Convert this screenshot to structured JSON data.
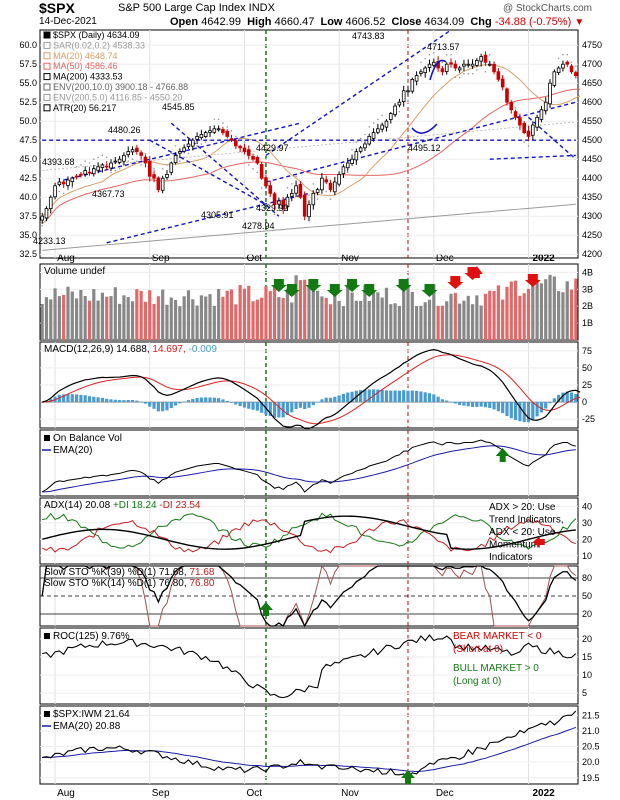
{
  "header": {
    "symbol": "$SPX",
    "name": "S&P 500 Large Cap Index  INDX",
    "date": "14-Dec-2021",
    "watermark": "@ StockCharts.com",
    "open_label": "Open",
    "open": "4642.99",
    "high_label": "High",
    "high": "4660.47",
    "low_label": "Low",
    "low": "4606.52",
    "close_label": "Close",
    "close": "4634.09",
    "chg_label": "Chg",
    "chg": "-34.88 (-0.75%)",
    "chg_icon": "down-triangle-icon"
  },
  "colors": {
    "up": "#000000",
    "down": "#cc0000",
    "ma20": "#d9a06a",
    "ma50": "#e66464",
    "ma200": "#9a9a9a",
    "sar": "#9a9a9a",
    "trend": "#1414c8",
    "green_marker": "#137a13",
    "red_marker": "#e01010",
    "vline_green": "#137a13",
    "vline_red": "#cc0000",
    "macd_hist": "#4a9bd0",
    "ema_blue": "#1a1aa8"
  },
  "chart_data": [
    {
      "id": "price",
      "type": "candlestick",
      "legend": [
        "$SPX (Daily) 4634.09",
        "SAR(0.02,0.2) 4538.33",
        "MA(20) 4648.74",
        "MA(50) 4586.46",
        "MA(200) 4333.53",
        "ENV(200,10.0) 3900.18 - 4766.88",
        "ENV(200,5.0) 4116.85 - 4550.20",
        "ATR(20) 56.217"
      ],
      "y_right_ticks": [
        "4750",
        "4700",
        "4650",
        "4600",
        "4550",
        "4500",
        "4450",
        "4400",
        "4350",
        "4300",
        "4250",
        "4200"
      ],
      "y_left_ticks": [
        "60.0",
        "57.5",
        "55.0",
        "52.5",
        "50.0",
        "47.5",
        "45.0",
        "42.5",
        "40.0",
        "37.5",
        "35.0",
        "32.5"
      ],
      "ylim": [
        4190,
        4790
      ],
      "annotations": [
        "4393.68",
        "4480.26",
        "4545.85",
        "4367.73",
        "4305.91",
        "4278.94",
        "4429.97",
        "4329.92",
        "4743.83",
        "4713.57",
        "4495.12",
        "4233.13"
      ],
      "closes": [
        4300,
        4320,
        4350,
        4380,
        4390,
        4385,
        4395,
        4400,
        4405,
        4410,
        4420,
        4415,
        4425,
        4430,
        4435,
        4430,
        4440,
        4445,
        4450,
        4460,
        4470,
        4475,
        4470,
        4460,
        4440,
        4405,
        4400,
        4370,
        4400,
        4410,
        4440,
        4460,
        4470,
        4480,
        4490,
        4500,
        4510,
        4515,
        4520,
        4525,
        4530,
        4530,
        4520,
        4510,
        4500,
        4485,
        4480,
        4470,
        4460,
        4450,
        4440,
        4400,
        4380,
        4360,
        4330,
        4340,
        4320,
        4350,
        4360,
        4380,
        4350,
        4300,
        4330,
        4360,
        4370,
        4400,
        4390,
        4370,
        4390,
        4410,
        4430,
        4440,
        4450,
        4470,
        4480,
        4490,
        4510,
        4520,
        4530,
        4540,
        4550,
        4570,
        4590,
        4600,
        4630,
        4630,
        4660,
        4670,
        4680,
        4690,
        4700,
        4705,
        4690,
        4680,
        4700,
        4700,
        4690,
        4690,
        4700,
        4700,
        4700,
        4710,
        4720,
        4705,
        4700,
        4680,
        4660,
        4640,
        4600,
        4580,
        4560,
        4540,
        4520,
        4510,
        4540,
        4560,
        4580,
        4600,
        4650,
        4680,
        4690,
        4700,
        4700,
        4680,
        4670,
        4634
      ]
    },
    {
      "id": "volume",
      "type": "bar",
      "legend": [
        "Volume undef"
      ],
      "y_ticks": [
        "4B",
        "3B",
        "2B",
        "1B"
      ],
      "ylim": [
        0,
        4.5
      ]
    },
    {
      "id": "macd",
      "type": "line",
      "legend_prefix": "MACD(12,26,9) ",
      "legend_macd": "14.688,",
      "legend_signal": "14.697,",
      "legend_hist": "-0.009",
      "y_ticks": [
        "75",
        "50",
        "25",
        "0",
        "-25"
      ],
      "ylim": [
        -38,
        88
      ]
    },
    {
      "id": "obv",
      "type": "line",
      "legend": [
        "On Balance Vol",
        "EMA(20)"
      ]
    },
    {
      "id": "adx",
      "type": "line",
      "legend_adx": "ADX(14) 20.08",
      "legend_pdi": "+DI 18.24",
      "legend_mdi": "-DI 23.54",
      "y_ticks": [
        "40",
        "30",
        "20",
        "10"
      ],
      "ylim": [
        5,
        45
      ],
      "note": [
        "ADX > 20: Use",
        "Trend Indicators,",
        "ADX < 20: Use",
        "Momentum",
        "Indicators"
      ]
    },
    {
      "id": "stoch",
      "type": "line",
      "legend_slow": "Slow STO %K(39) %D(1) 71.68, ",
      "legend_slow_red": "71.68",
      "legend_fast": "Slow STO %K(14) %D(1) 76.80, ",
      "legend_fast_red": "76.80",
      "y_ticks": [
        "80",
        "50",
        "20"
      ],
      "ylim": [
        0,
        100
      ]
    },
    {
      "id": "roc",
      "type": "line",
      "legend": [
        "ROC(125) 9.76%"
      ],
      "y_ticks": [
        "20",
        "15",
        "10",
        "5"
      ],
      "ylim": [
        2,
        23
      ],
      "note_bear": [
        "BEAR MARKET < 0",
        "(Short at 0)"
      ],
      "note_bull": [
        "BULL MARKET > 0",
        "(Long at 0)"
      ]
    },
    {
      "id": "ratio",
      "type": "line",
      "legend": [
        "$SPX:IWM 21.64",
        "EMA(20) 20.88"
      ],
      "y_ticks": [
        "21.5",
        "21.0",
        "20.5",
        "20.0",
        "19.5"
      ],
      "ylim": [
        19.3,
        21.8
      ]
    }
  ],
  "x_axis": {
    "top_labels": [
      "Aug",
      "Sep",
      "Oct",
      "Nov",
      "Dec",
      "2022"
    ],
    "bottom_labels": [
      "Aug",
      "Sep",
      "Oct",
      "Nov",
      "Dec",
      "2022"
    ]
  }
}
